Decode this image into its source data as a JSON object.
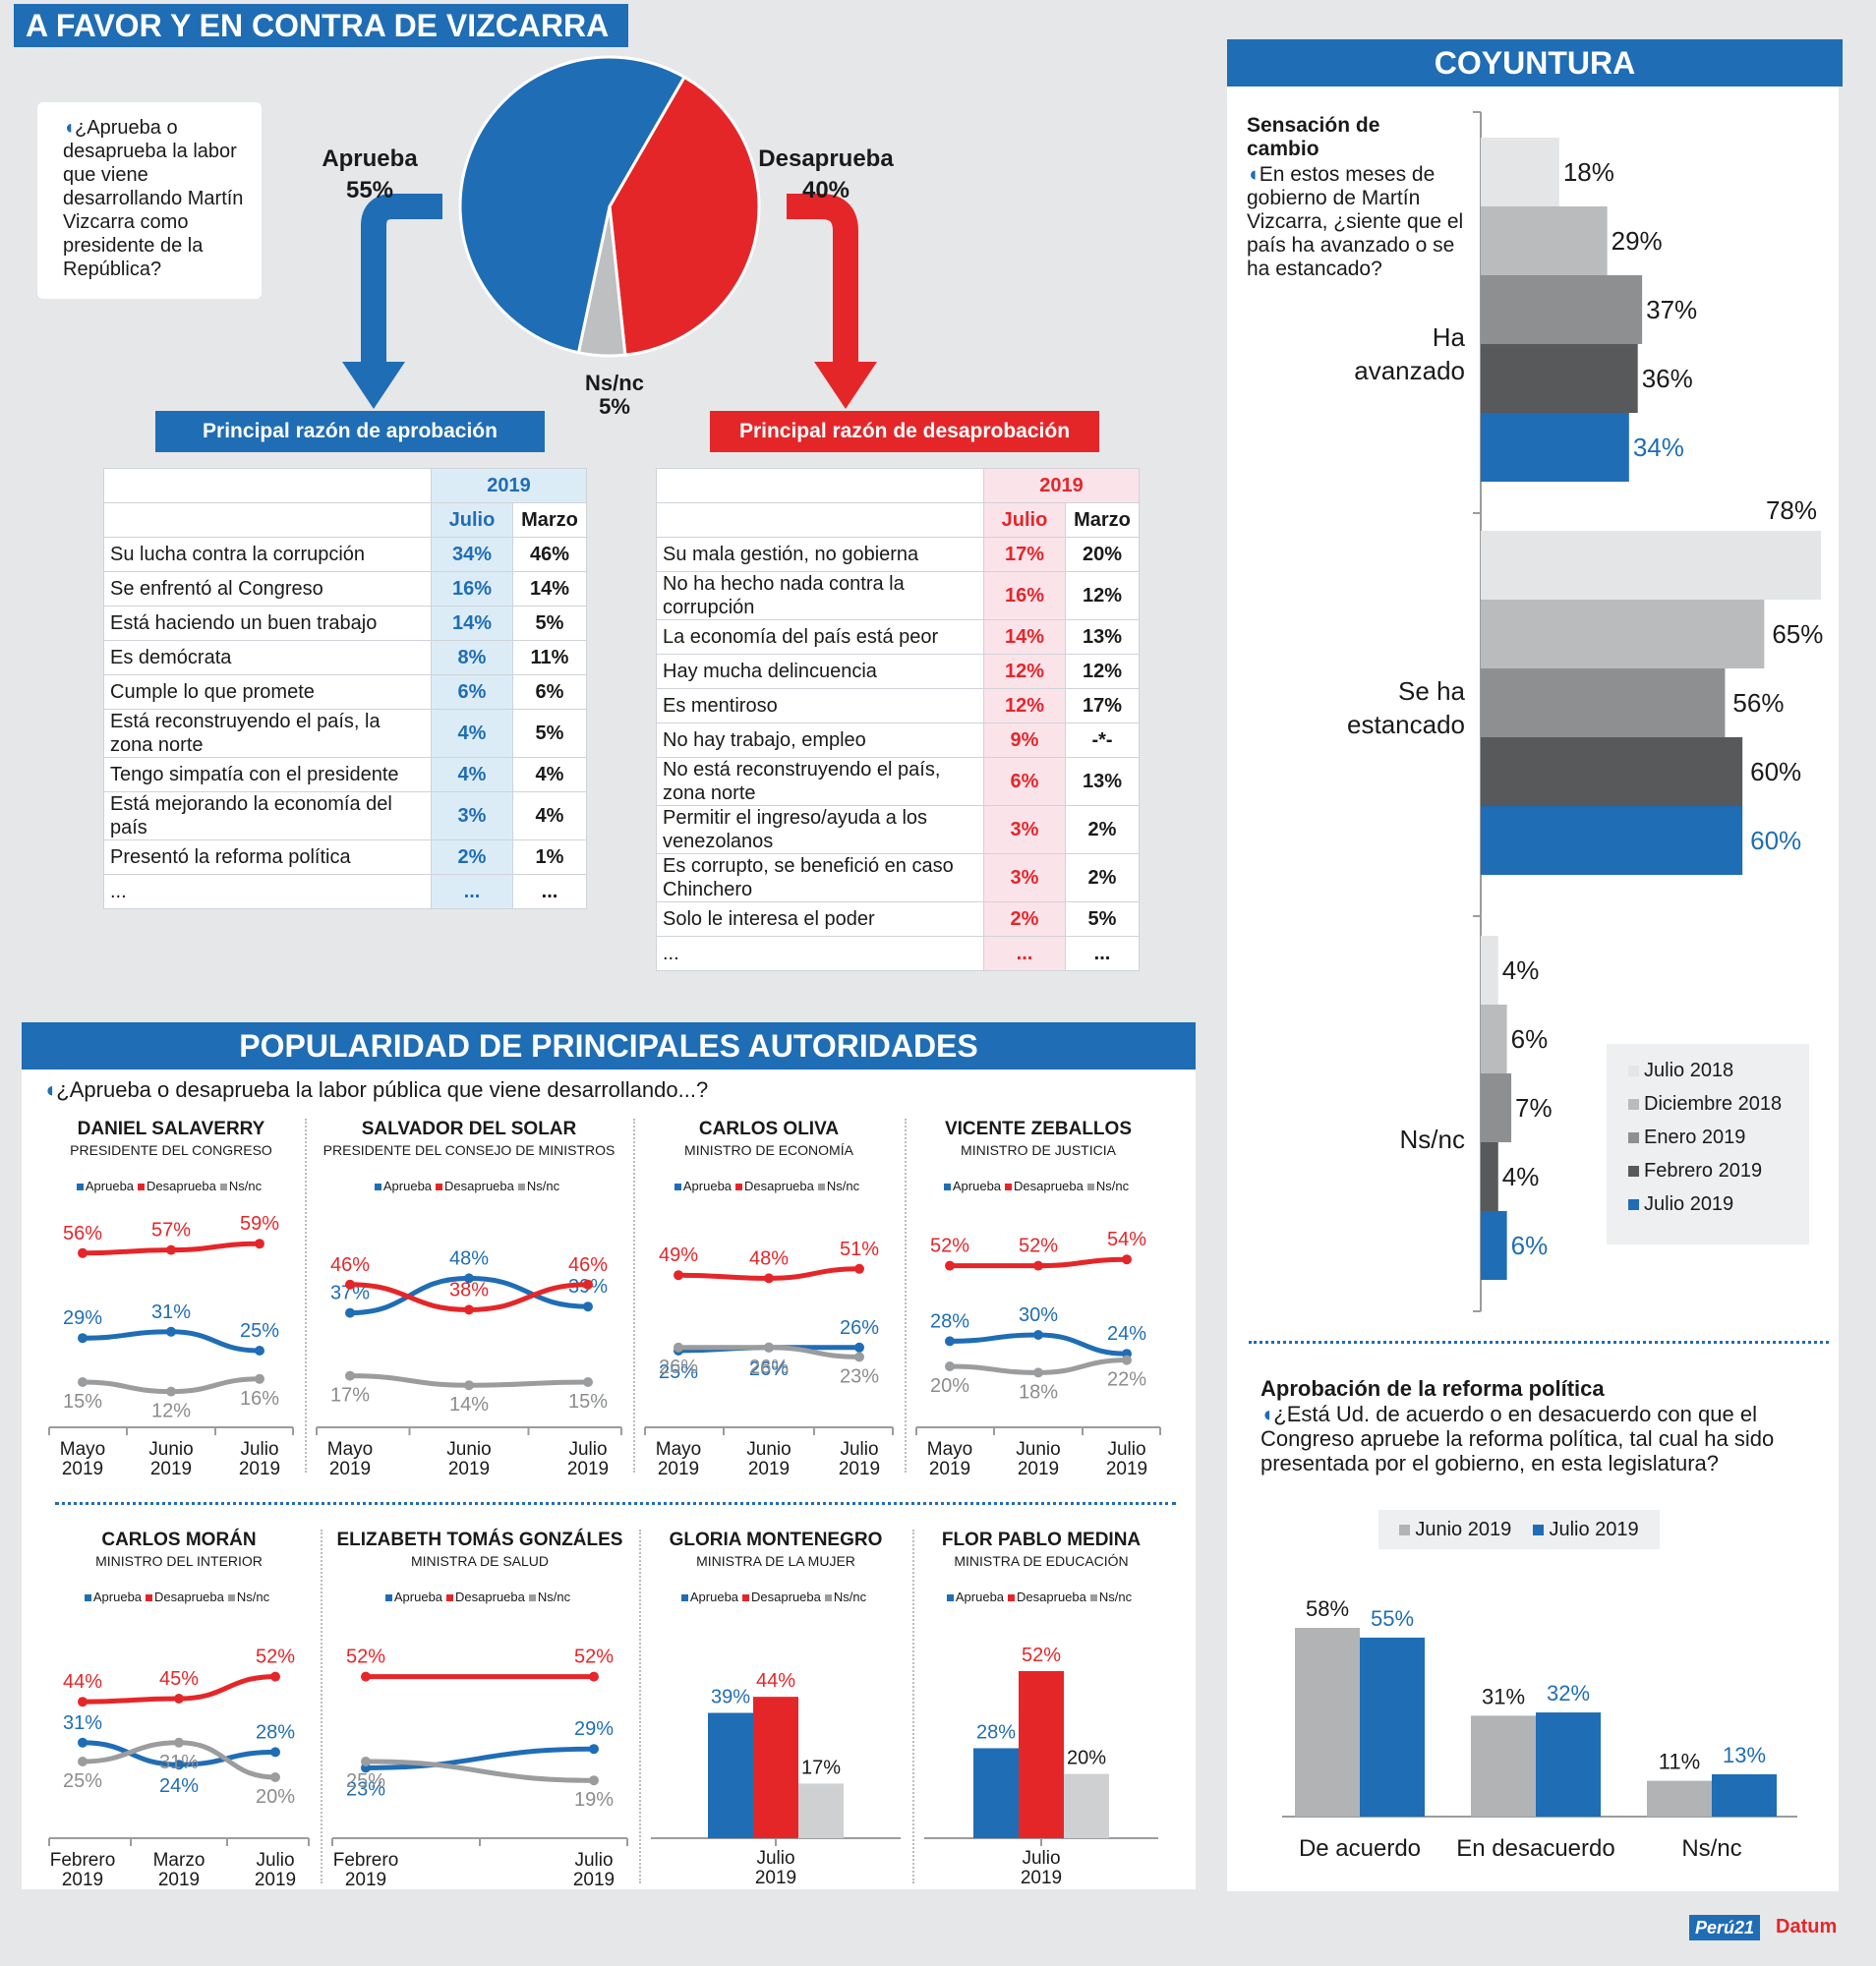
{
  "header": {
    "title": "A FAVOR Y EN CONTRA DE VIZCARRA",
    "coyuntura": "COYUNTURA",
    "popularidad": "POPULARIDAD DE PRINCIPALES AUTORIDADES"
  },
  "question_box": "¿Aprueba o desaprueba la labor que viene desarrollando Martín Vizcarra como presidente de la República?",
  "pie_labels": {
    "aprueba": "Aprueba",
    "aprueba_pct": "55%",
    "desaprueba": "Desaprueba",
    "desaprueba_pct": "40%",
    "nsnc": "Ns/nc",
    "nsnc_pct": "5%"
  },
  "approval_table": {
    "title": "Principal razón de aprobación",
    "year": "2019",
    "col1": "Julio",
    "col2": "Marzo",
    "rows": [
      {
        "label": "Su lucha contra la corrupción",
        "julio": "34%",
        "marzo": "46%"
      },
      {
        "label": "Se enfrentó al Congreso",
        "julio": "16%",
        "marzo": "14%"
      },
      {
        "label": "Está haciendo un buen trabajo",
        "julio": "14%",
        "marzo": "5%"
      },
      {
        "label": "Es demócrata",
        "julio": "8%",
        "marzo": "11%"
      },
      {
        "label": "Cumple lo que promete",
        "julio": "6%",
        "marzo": "6%"
      },
      {
        "label": "Está reconstruyendo el país, la zona norte",
        "julio": "4%",
        "marzo": "5%"
      },
      {
        "label": "Tengo simpatía con el presidente",
        "julio": "4%",
        "marzo": "4%"
      },
      {
        "label": "Está mejorando la economía del país",
        "julio": "3%",
        "marzo": "4%"
      },
      {
        "label": "Presentó  la reforma política",
        "julio": "2%",
        "marzo": "1%"
      },
      {
        "label": "...",
        "julio": "...",
        "marzo": "..."
      }
    ]
  },
  "disapproval_table": {
    "title": "Principal razón de desaprobación",
    "year": "2019",
    "col1": "Julio",
    "col2": "Marzo",
    "rows": [
      {
        "label": "Su mala gestión, no gobierna",
        "julio": "17%",
        "marzo": "20%"
      },
      {
        "label": "No ha hecho nada contra la corrupción",
        "julio": "16%",
        "marzo": "12%"
      },
      {
        "label": "La economía del país está peor",
        "julio": "14%",
        "marzo": "13%"
      },
      {
        "label": "Hay mucha delincuencia",
        "julio": "12%",
        "marzo": "12%"
      },
      {
        "label": "Es mentiroso",
        "julio": "12%",
        "marzo": "17%"
      },
      {
        "label": "No hay trabajo, empleo",
        "julio": "9%",
        "marzo": "-*-"
      },
      {
        "label": "No está reconstruyendo el país, zona norte",
        "julio": "6%",
        "marzo": "13%"
      },
      {
        "label": "Permitir el ingreso/ayuda a los venezolanos",
        "julio": "3%",
        "marzo": "2%"
      },
      {
        "label": "Es corrupto, se benefició en caso Chinchero",
        "julio": "3%",
        "marzo": "2%"
      },
      {
        "label": "Solo le interesa el poder",
        "julio": "2%",
        "marzo": "5%"
      },
      {
        "label": "...",
        "julio": "...",
        "marzo": "..."
      }
    ]
  },
  "coyuntura": {
    "title": "Sensación de cambio",
    "question": "En estos meses de gobierno de Martín Vizcarra, ¿siente que el país ha avanzado o se ha estancado?",
    "groups": [
      "Ha avanzado",
      "Se ha estancado",
      "Ns/nc"
    ],
    "legend": [
      "Julio 2018",
      "Diciembre 2018",
      "Enero 2019",
      "Febrero 2019",
      "Julio 2019"
    ]
  },
  "reforma": {
    "title": "Aprobación de la reforma política",
    "question": "¿Está Ud. de acuerdo o en desacuerdo con que el Congreso apruebe la reforma política, tal cual ha sido presentada por el gobierno, en esta legislatura?",
    "legend": [
      "Junio 2019",
      "Julio 2019"
    ]
  },
  "popularidad_question": "¿Aprueba o desaprueba la labor pública que viene desarrollando...?",
  "mini_legend": [
    "Aprueba",
    "Desaprueba",
    "Ns/nc"
  ],
  "footer": {
    "logo1": "Perú21",
    "logo2": "Datum"
  },
  "colors": {
    "blue": "#1f6db5",
    "red": "#e52629",
    "gray": "#bdbfc1",
    "bg": "#e6e7e9"
  },
  "chart_data": [
    {
      "id": "vizcarra_pie",
      "type": "pie",
      "labels": [
        "Aprueba",
        "Desaprueba",
        "Ns/nc"
      ],
      "values": [
        55,
        40,
        5
      ]
    },
    {
      "id": "sensacion_cambio",
      "type": "bar",
      "orientation": "horizontal",
      "categories": [
        "Ha avanzado",
        "Se ha estancado",
        "Ns/nc"
      ],
      "series": [
        {
          "name": "Julio 2018",
          "values": [
            18,
            78,
            4
          ]
        },
        {
          "name": "Diciembre 2018",
          "values": [
            29,
            65,
            6
          ]
        },
        {
          "name": "Enero 2019",
          "values": [
            37,
            56,
            7
          ]
        },
        {
          "name": "Febrero 2019",
          "values": [
            36,
            60,
            4
          ]
        },
        {
          "name": "Julio 2019",
          "values": [
            34,
            60,
            6
          ]
        }
      ],
      "legend": "bottom-right"
    },
    {
      "id": "reforma_politica",
      "type": "bar",
      "categories": [
        "De acuerdo",
        "En desacuerdo",
        "Ns/nc"
      ],
      "series": [
        {
          "name": "Junio 2019",
          "values": [
            58,
            31,
            11
          ]
        },
        {
          "name": "Julio 2019",
          "values": [
            55,
            32,
            13
          ]
        }
      ],
      "legend": "top"
    },
    {
      "id": "salaverry",
      "type": "line",
      "name": "DANIEL SALAVERRY",
      "role": "PRESIDENTE DEL CONGRESO",
      "x": [
        "Mayo 2019",
        "Junio 2019",
        "Julio 2019"
      ],
      "series": [
        {
          "name": "Aprueba",
          "values": [
            29,
            31,
            25
          ]
        },
        {
          "name": "Desaprueba",
          "values": [
            56,
            57,
            59
          ]
        },
        {
          "name": "Ns/nc",
          "values": [
            15,
            12,
            16
          ]
        }
      ]
    },
    {
      "id": "del_solar",
      "type": "line",
      "name": "SALVADOR DEL SOLAR",
      "role": "PRESIDENTE DEL CONSEJO DE MINISTROS",
      "x": [
        "Mayo 2019",
        "Junio 2019",
        "Julio 2019"
      ],
      "series": [
        {
          "name": "Aprueba",
          "values": [
            37,
            48,
            39
          ]
        },
        {
          "name": "Desaprueba",
          "values": [
            46,
            38,
            46
          ]
        },
        {
          "name": "Ns/nc",
          "values": [
            17,
            14,
            15
          ]
        }
      ]
    },
    {
      "id": "oliva",
      "type": "line",
      "name": "CARLOS OLIVA",
      "role": "MINISTRO DE ECONOMÍA",
      "x": [
        "Mayo 2019",
        "Junio 2019",
        "Julio 2019"
      ],
      "series": [
        {
          "name": "Aprueba",
          "values": [
            25,
            26,
            26
          ]
        },
        {
          "name": "Desaprueba",
          "values": [
            49,
            48,
            51
          ]
        },
        {
          "name": "Ns/nc",
          "values": [
            26,
            26,
            23
          ]
        }
      ]
    },
    {
      "id": "zeballos",
      "type": "line",
      "name": "VICENTE ZEBALLOS",
      "role": "MINISTRO DE JUSTICIA",
      "x": [
        "Mayo 2019",
        "Junio 2019",
        "Julio 2019"
      ],
      "series": [
        {
          "name": "Aprueba",
          "values": [
            28,
            30,
            24
          ]
        },
        {
          "name": "Desaprueba",
          "values": [
            52,
            52,
            54
          ]
        },
        {
          "name": "Ns/nc",
          "values": [
            20,
            18,
            22
          ]
        }
      ]
    },
    {
      "id": "moran",
      "type": "line",
      "name": "CARLOS MORÁN",
      "role": "MINISTRO DEL INTERIOR",
      "x": [
        "Febrero 2019",
        "Marzo 2019",
        "Julio 2019"
      ],
      "series": [
        {
          "name": "Aprueba",
          "values": [
            31,
            24,
            28
          ]
        },
        {
          "name": "Desaprueba",
          "values": [
            44,
            45,
            52
          ]
        },
        {
          "name": "Ns/nc",
          "values": [
            25,
            31,
            20
          ]
        }
      ]
    },
    {
      "id": "tomas",
      "type": "line",
      "name": "ELIZABETH TOMÁS GONZÁLES",
      "role": "MINISTRA DE SALUD",
      "x": [
        "Febrero 2019",
        "Julio 2019"
      ],
      "series": [
        {
          "name": "Aprueba",
          "values": [
            23,
            29
          ]
        },
        {
          "name": "Desaprueba",
          "values": [
            52,
            52
          ]
        },
        {
          "name": "Ns/nc",
          "values": [
            25,
            19
          ]
        }
      ]
    },
    {
      "id": "montenegro",
      "type": "bar",
      "name": "GLORIA MONTENEGRO",
      "role": "MINISTRA DE LA MUJER",
      "categories": [
        "Julio 2019"
      ],
      "series": [
        {
          "name": "Aprueba",
          "values": [
            39
          ]
        },
        {
          "name": "Desaprueba",
          "values": [
            44
          ]
        },
        {
          "name": "Ns/nc",
          "values": [
            17
          ]
        }
      ]
    },
    {
      "id": "pablo",
      "type": "bar",
      "name": "FLOR PABLO MEDINA",
      "role": "MINISTRA DE EDUCACIÓN",
      "categories": [
        "Julio 2019"
      ],
      "series": [
        {
          "name": "Aprueba",
          "values": [
            28
          ]
        },
        {
          "name": "Desaprueba",
          "values": [
            52
          ]
        },
        {
          "name": "Ns/nc",
          "values": [
            20
          ]
        }
      ]
    }
  ]
}
